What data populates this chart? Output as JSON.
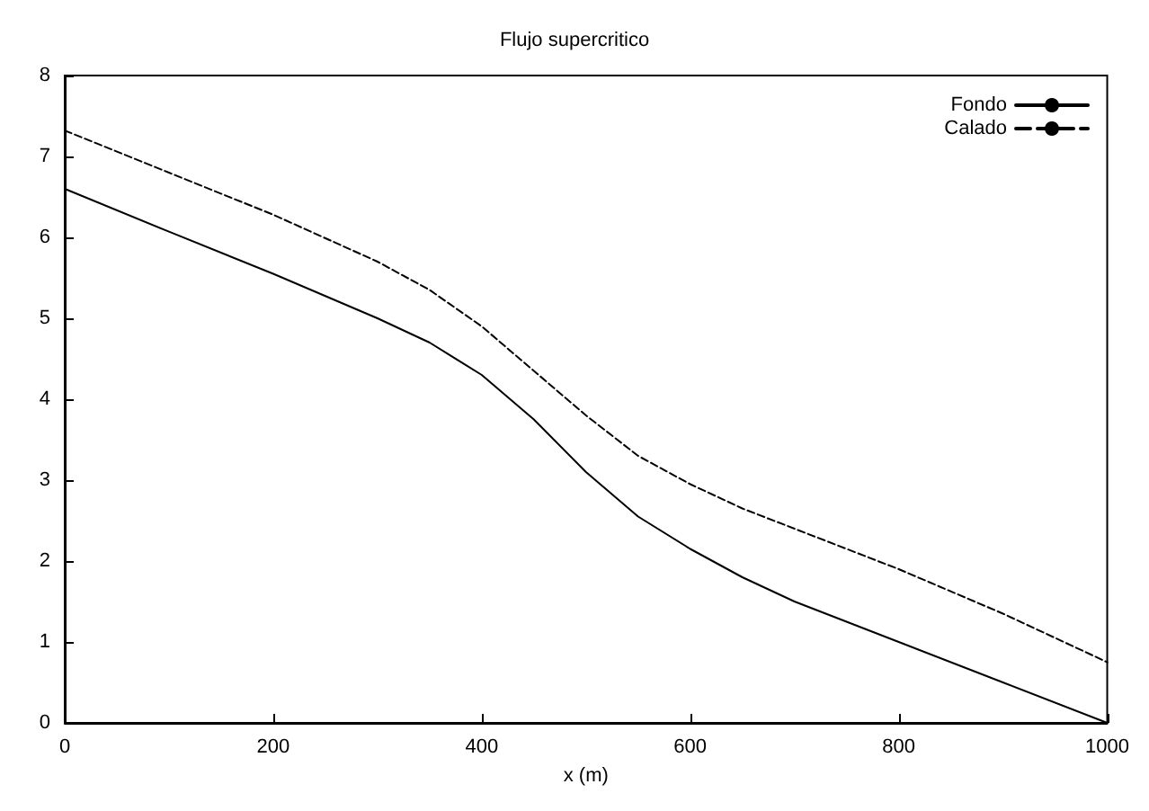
{
  "chart_data": {
    "type": "line",
    "title": "Flujo supercritico",
    "xlabel": "x (m)",
    "x": [
      0,
      100,
      200,
      300,
      350,
      400,
      450,
      500,
      550,
      600,
      650,
      700,
      800,
      900,
      1000
    ],
    "series": [
      {
        "name": "Fondo",
        "color": "#000000",
        "line_style": "solid",
        "values": [
          6.6,
          6.07,
          5.55,
          5.0,
          4.7,
          4.3,
          3.75,
          3.1,
          2.55,
          2.15,
          1.8,
          1.5,
          1.0,
          0.5,
          0.0
        ]
      },
      {
        "name": "Calado",
        "color": "#000000",
        "line_style": "dashed",
        "values": [
          7.32,
          6.8,
          6.28,
          5.7,
          5.35,
          4.9,
          4.35,
          3.8,
          3.3,
          2.95,
          2.65,
          2.4,
          1.9,
          1.35,
          0.75
        ]
      }
    ],
    "xlim": [
      0,
      1000
    ],
    "xticks": [
      0,
      200,
      400,
      600,
      800,
      1000
    ],
    "ylim": [
      0,
      8
    ],
    "yticks": [
      0,
      1,
      2,
      3,
      4,
      5,
      6,
      7,
      8
    ],
    "grid": false,
    "legend": "top right",
    "marker": "none"
  }
}
